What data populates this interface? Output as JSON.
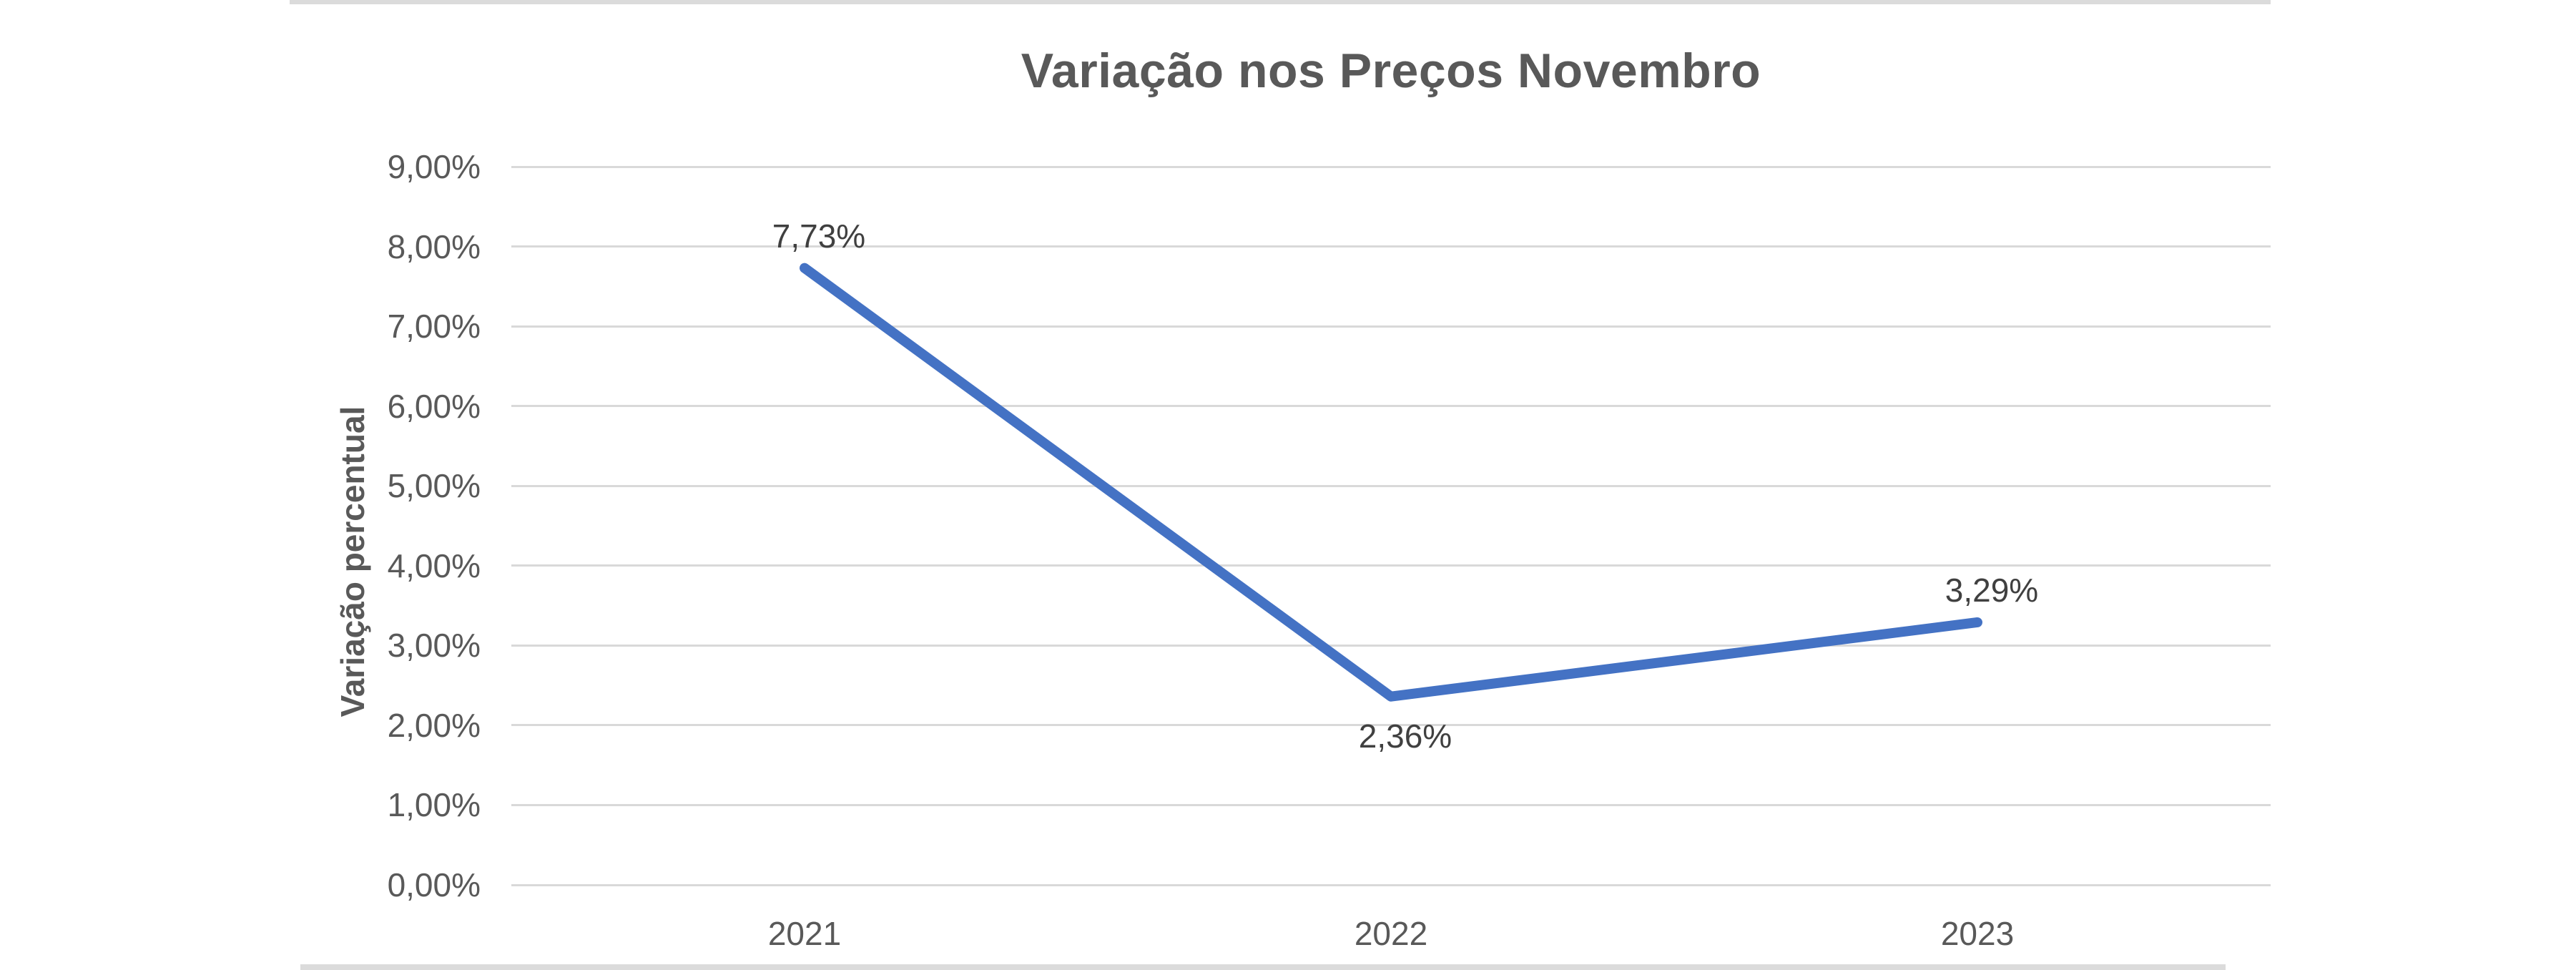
{
  "chart_data": {
    "type": "line",
    "title": "Variação nos Preços Novembro",
    "xlabel": "",
    "ylabel": "Variação percentual",
    "categories": [
      "2021",
      "2022",
      "2023"
    ],
    "values": [
      7.73,
      2.36,
      3.29
    ],
    "data_labels": [
      "7,73%",
      "2,36%",
      "3,29%"
    ],
    "data_label_positions": [
      "above",
      "below",
      "above"
    ],
    "ytick_labels": [
      "9,00%",
      "8,00%",
      "7,00%",
      "6,00%",
      "5,00%",
      "4,00%",
      "3,00%",
      "2,00%",
      "1,00%",
      "0,00%"
    ],
    "ylim": [
      0,
      9
    ],
    "grid": true,
    "legend": false,
    "colors": {
      "series_line": "#4472C4",
      "gridline": "#D9D9D9",
      "axis_text": "#595959",
      "data_label_text": "#404040",
      "title_text": "#595959",
      "sheet_edge": "#DBDBDB"
    }
  }
}
